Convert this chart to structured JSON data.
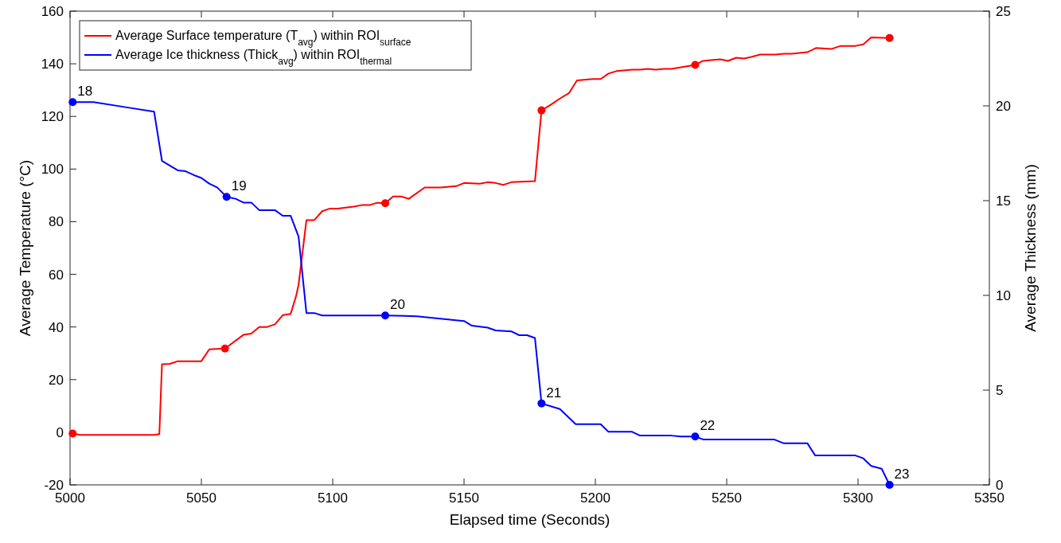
{
  "chart_data": {
    "type": "line",
    "xlabel": "Elapsed time (Seconds)",
    "ylabel": "Average Temperature (°C)",
    "y2label": "Average Thickness (mm)",
    "xlim": [
      5000,
      5350
    ],
    "xticks": [
      5000,
      5050,
      5100,
      5150,
      5200,
      5250,
      5300,
      5350
    ],
    "ylim": [
      -20,
      160
    ],
    "yticks": [
      -20,
      0,
      20,
      40,
      60,
      80,
      100,
      120,
      140,
      160
    ],
    "y2lim": [
      0,
      25
    ],
    "y2ticks": [
      0,
      5,
      10,
      15,
      20,
      25
    ],
    "grid": false,
    "legend": "top left",
    "marker": "none",
    "line_style": "solid",
    "series": [
      {
        "name": "Average Surface temperature (T$_{avg}$) within ROI$_{surface}$",
        "color": "#ff0000",
        "x": [
          5001,
          5004,
          5007,
          5016,
          5032,
          5034,
          5035,
          5038,
          5041,
          5050,
          5053,
          5059,
          5066,
          5069,
          5072,
          5075,
          5078,
          5081,
          5084,
          5086,
          5087,
          5090,
          5093,
          5096,
          5099,
          5102,
          5108,
          5111,
          5114,
          5117,
          5120,
          5123,
          5126,
          5129,
          5135,
          5141,
          5147,
          5150,
          5156,
          5159,
          5162,
          5165,
          5168,
          5177,
          5179.5,
          5183,
          5186.5,
          5190,
          5193,
          5199,
          5202,
          5205,
          5208,
          5214,
          5217,
          5220,
          5223,
          5226,
          5229,
          5238,
          5241,
          5244,
          5247.5,
          5250.5,
          5253.6,
          5256.6,
          5259.4,
          5262.7,
          5268.7,
          5271.7,
          5274.7,
          5280.7,
          5284,
          5289.8,
          5293.4,
          5299,
          5302,
          5305,
          5312
        ],
        "values": [
          -0.5,
          -1,
          -1,
          -1,
          -1,
          -0.7,
          25.8,
          26,
          27,
          27,
          31.5,
          31.8,
          37,
          37.5,
          40,
          40,
          41,
          44.5,
          45,
          51.5,
          56,
          80.6,
          80.6,
          84,
          85,
          85,
          85.7,
          86.3,
          86.3,
          87.2,
          87,
          89.6,
          89.6,
          88.7,
          93,
          93,
          93.5,
          94.7,
          94.4,
          95,
          94.7,
          94,
          95,
          95.4,
          122.3,
          124.4,
          126.8,
          128.9,
          133.7,
          134.2,
          134.2,
          136.3,
          137.2,
          137.8,
          137.8,
          138.1,
          137.8,
          138.1,
          138.1,
          139.6,
          141.1,
          141.4,
          141.7,
          141.1,
          142.3,
          142,
          142.6,
          143.5,
          143.5,
          143.8,
          143.8,
          144.4,
          146,
          145.6,
          146.8,
          146.8,
          147.4,
          150,
          149.8
        ]
      },
      {
        "name": "Average Ice thickness (Thick$_{avg}$) within ROI$_{thermal}$",
        "color": "#0000ff",
        "axis": "y2",
        "x": [
          5001,
          5009,
          5022.6,
          5032,
          5035,
          5041,
          5044,
          5048,
          5050,
          5053,
          5056,
          5059.6,
          5063,
          5066,
          5069,
          5072,
          5078,
          5081,
          5084,
          5087,
          5090,
          5093,
          5096,
          5120,
          5132,
          5150,
          5153,
          5159,
          5162,
          5168,
          5171,
          5174,
          5177,
          5179.5,
          5186.5,
          5192.5,
          5202,
          5205,
          5214,
          5217,
          5229,
          5232.5,
          5238,
          5241,
          5268,
          5271.6,
          5280.7,
          5283.7,
          5299,
          5302,
          5305,
          5309,
          5312
        ],
        "values": [
          20.2,
          20.2,
          19.9,
          19.7,
          17.1,
          16.6,
          16.55,
          16.3,
          16.2,
          15.9,
          15.7,
          15.2,
          15.1,
          14.9,
          14.9,
          14.5,
          14.5,
          14.2,
          14.2,
          13.1,
          9.07,
          9.07,
          8.94,
          8.94,
          8.9,
          8.65,
          8.4,
          8.3,
          8.15,
          8.1,
          7.9,
          7.9,
          7.75,
          4.3,
          4.0,
          3.2,
          3.2,
          2.8,
          2.8,
          2.6,
          2.6,
          2.55,
          2.55,
          2.4,
          2.4,
          2.2,
          2.2,
          1.55,
          1.55,
          1.4,
          1.0,
          0.85,
          0.0
        ]
      },
      {
        "type": "scatter",
        "marker": "circle",
        "color": "#ff0000",
        "x": [
          5001,
          5059,
          5120,
          5179.5,
          5238,
          5312
        ],
        "values": [
          -0.5,
          31.8,
          87,
          122.3,
          139.6,
          149.8
        ]
      },
      {
        "type": "scatter",
        "marker": "circle",
        "color": "#0000ff",
        "axis": "y2",
        "x": [
          5001,
          5059.6,
          5120,
          5179.5,
          5238,
          5312
        ],
        "values": [
          20.2,
          15.2,
          8.94,
          4.3,
          2.55,
          0.0
        ]
      }
    ],
    "annotations": [
      {
        "text": "18",
        "x": 5001,
        "y": 125.4
      },
      {
        "text": "19",
        "x": 5059.6,
        "y": 89.4
      },
      {
        "text": "20",
        "x": 5120,
        "y": 44.4
      },
      {
        "text": "21",
        "x": 5179.5,
        "y": 11
      },
      {
        "text": "22",
        "x": 5238,
        "y": -1.6
      },
      {
        "text": "23",
        "x": 5312,
        "y": -20
      }
    ]
  }
}
